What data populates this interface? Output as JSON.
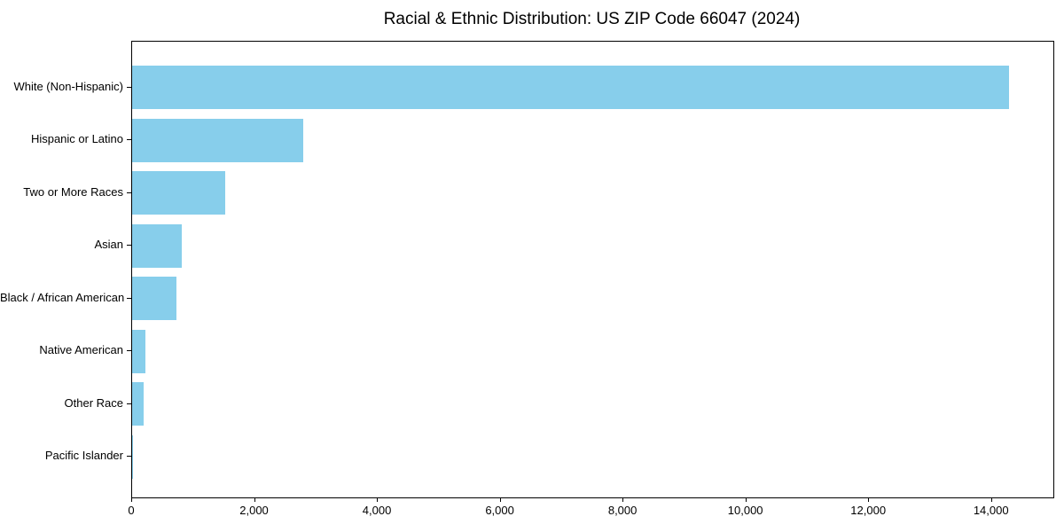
{
  "chart_data": {
    "type": "bar",
    "orientation": "horizontal",
    "title": "Racial & Ethnic Distribution: US ZIP Code 66047 (2024)",
    "categories": [
      "White (Non-Hispanic)",
      "Hispanic or Latino",
      "Two or More Races",
      "Asian",
      "Black / African American",
      "Native American",
      "Other Race",
      "Pacific Islander"
    ],
    "values": [
      14280,
      2790,
      1510,
      810,
      715,
      210,
      185,
      15
    ],
    "xlabel": "",
    "ylabel": "",
    "xlim": [
      0,
      15000
    ],
    "xticks": [
      0,
      2000,
      4000,
      6000,
      8000,
      10000,
      12000,
      14000
    ],
    "xtick_labels": [
      "0",
      "2,000",
      "4,000",
      "6,000",
      "8,000",
      "10,000",
      "12,000",
      "14,000"
    ],
    "bar_color": "#87CEEB",
    "background_color": "#ffffff",
    "axis_color": "#000000",
    "grid": false,
    "legend": null
  }
}
